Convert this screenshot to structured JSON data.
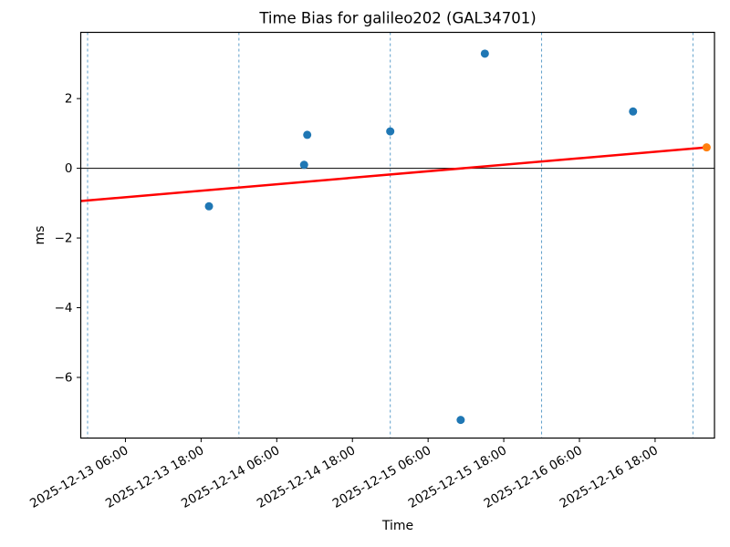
{
  "figure": {
    "title": "Time Bias for galileo202 (GAL34701)",
    "xlabel": "Time",
    "ylabel": "ms"
  },
  "chart_data": {
    "type": "scatter",
    "title": "Time Bias for galileo202 (GAL34701)",
    "xlabel": "Time",
    "ylabel": "ms",
    "background": "#ffffff",
    "frame_color": "#000000",
    "gridline_color": "#5e9fca",
    "zero_line_color": "#000000",
    "x_axis": {
      "start": "2025-12-12 22:55",
      "end": "2025-12-17 03:25",
      "tick_times": [
        "2025-12-13 06:00",
        "2025-12-13 18:00",
        "2025-12-14 06:00",
        "2025-12-14 18:00",
        "2025-12-15 06:00",
        "2025-12-15 18:00",
        "2025-12-16 06:00",
        "2025-12-16 18:00"
      ],
      "tick_labels": [
        "2025-12-13 06:00",
        "2025-12-13 18:00",
        "2025-12-14 06:00",
        "2025-12-14 18:00",
        "2025-12-15 06:00",
        "2025-12-15 18:00",
        "2025-12-16 06:00",
        "2025-12-16 18:00"
      ],
      "tick_label_rotation_deg": 30,
      "day_gridlines": [
        "2025-12-13 00:00",
        "2025-12-14 00:00",
        "2025-12-15 00:00",
        "2025-12-16 00:00",
        "2025-12-17 00:00"
      ]
    },
    "y_axis": {
      "min": -7.74,
      "max": 3.9,
      "ticks": [
        2,
        0,
        -2,
        -4,
        -6
      ],
      "tick_labels": [
        "2",
        "0",
        "−2",
        "−4",
        "−6"
      ]
    },
    "series": [
      {
        "name": "time-bias-measurements",
        "type": "scatter",
        "color": "#1f77b4",
        "marker": "circle",
        "marker_radius": 4.5,
        "points": [
          [
            "2025-12-13 19:15",
            -1.09
          ],
          [
            "2025-12-14 10:20",
            0.1
          ],
          [
            "2025-12-14 10:50",
            0.96
          ],
          [
            "2025-12-15 00:00",
            1.06
          ],
          [
            "2025-12-15 11:10",
            -7.22
          ],
          [
            "2025-12-15 15:00",
            3.29
          ],
          [
            "2025-12-16 14:30",
            1.63
          ]
        ]
      },
      {
        "name": "trend-line",
        "type": "line",
        "color": "#ff0000",
        "width": 2.5,
        "points": [
          [
            "2025-12-12 22:55",
            -0.94
          ],
          [
            "2025-12-17 02:10",
            0.6
          ]
        ]
      },
      {
        "name": "predicted-point",
        "type": "scatter",
        "color": "#ff7f0e",
        "marker": "circle",
        "marker_radius": 4.5,
        "points": [
          [
            "2025-12-17 02:10",
            0.6
          ]
        ]
      }
    ],
    "zero_line": true,
    "legend": null
  }
}
